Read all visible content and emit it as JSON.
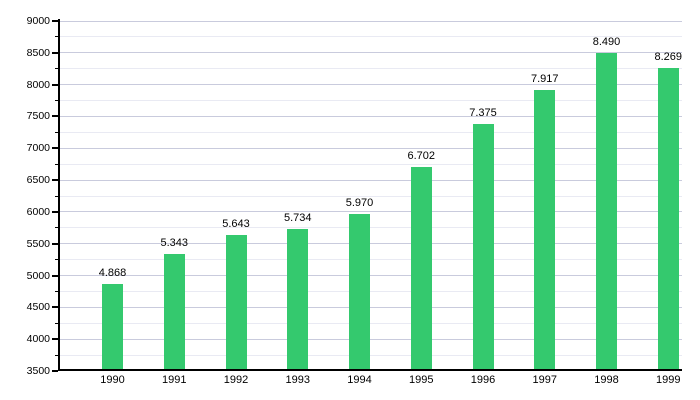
{
  "chart_data": {
    "type": "bar",
    "title": "",
    "xlabel": "",
    "ylabel": "",
    "categories": [
      "1990",
      "1991",
      "1992",
      "1993",
      "1994",
      "1995",
      "1996",
      "1997",
      "1998",
      "1999"
    ],
    "values": [
      4868,
      5343,
      5643,
      5734,
      5970,
      6702,
      7375,
      7917,
      8490,
      8269
    ],
    "value_labels": [
      "4.868",
      "5.343",
      "5.643",
      "5.734",
      "5.970",
      "6.702",
      "7.375",
      "7.917",
      "8.490",
      "8.269"
    ],
    "y_tick_labels": [
      "3500",
      "4000",
      "4500",
      "5000",
      "5500",
      "6000",
      "6500",
      "7000",
      "7500",
      "8000",
      "8500",
      "9000"
    ],
    "ylim": [
      3500,
      9000
    ],
    "y_major_step": 500,
    "y_minor_step": 250,
    "grid": true,
    "legend": false,
    "colors": {
      "bar": "#34c96e",
      "grid_major": "#c9cbdd",
      "grid_minor": "#e9eaf3",
      "axis": "#000000",
      "text": "#000000",
      "background": "#ffffff"
    }
  }
}
